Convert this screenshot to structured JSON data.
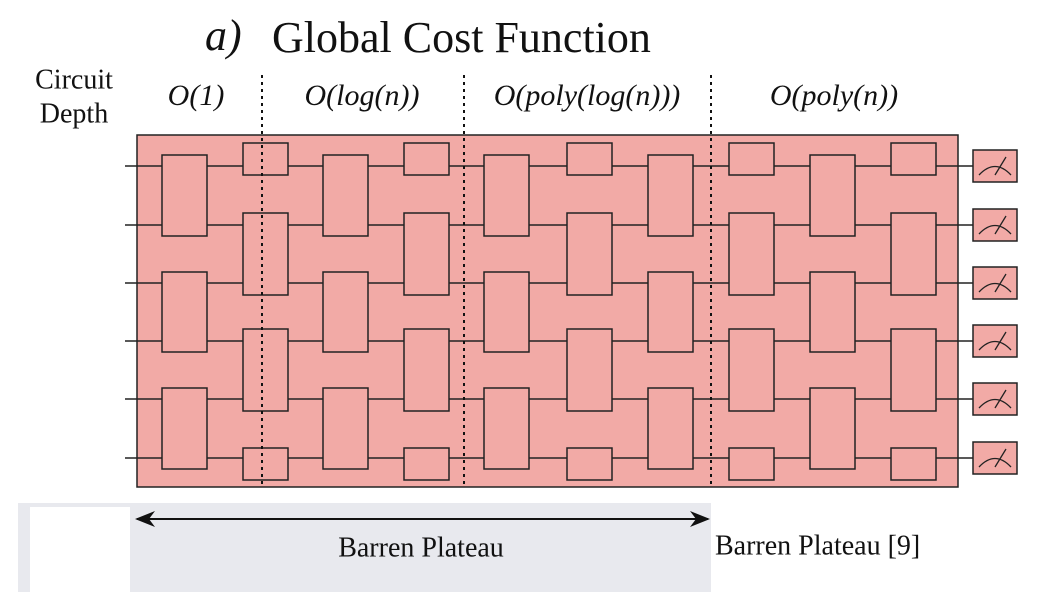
{
  "header": {
    "label": "a)",
    "title": "Global Cost Function"
  },
  "axis_label": {
    "line1": "Circuit",
    "line2": "Depth"
  },
  "regions": [
    {
      "label": "O(1)"
    },
    {
      "label": "O(log(n))"
    },
    {
      "label": "O(poly(log(n)))"
    },
    {
      "label": "O(poly(n))"
    }
  ],
  "plateau": {
    "label": "Barren Plateau",
    "reference": "Barren Plateau [9]"
  }
}
